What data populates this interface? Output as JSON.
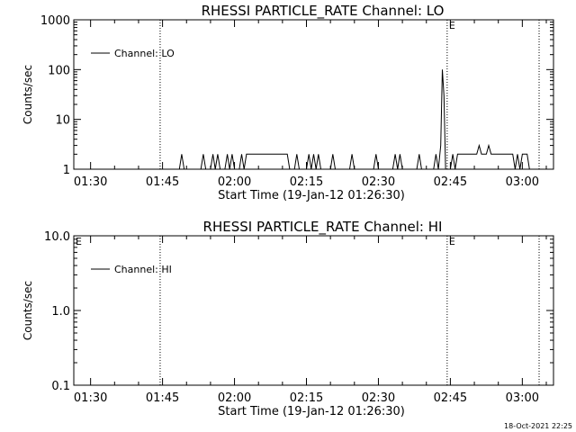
{
  "footer": {
    "timestamp": "18-Oct-2021 22:25"
  },
  "chart_data": [
    {
      "type": "line",
      "title": "RHESSI PARTICLE_RATE Channel: LO",
      "xlabel": "Start Time (19-Jan-12 01:26:30)",
      "ylabel": "Counts/sec",
      "yscale": "log",
      "ylim": [
        1,
        1000
      ],
      "xlim": [
        "01:26:30",
        "03:06:30"
      ],
      "x_ticks": [
        "01:30",
        "01:45",
        "02:00",
        "02:15",
        "02:30",
        "02:45",
        "03:00"
      ],
      "y_ticks": [
        "1",
        "10",
        "100",
        "1000"
      ],
      "legend": {
        "position": "top-left",
        "entries": [
          "Channel: LO"
        ]
      },
      "markers": [
        {
          "time": "01:44:30",
          "label": ""
        },
        {
          "time": "02:44:20",
          "label": "E"
        },
        {
          "time": "03:03:30",
          "label": ""
        }
      ],
      "series": [
        {
          "name": "Channel: LO",
          "points": [
            [
              "01:26:30",
              1
            ],
            [
              "01:48:30",
              1
            ],
            [
              "01:49:00",
              2
            ],
            [
              "01:49:30",
              1
            ],
            [
              "01:53:00",
              1
            ],
            [
              "01:53:30",
              2
            ],
            [
              "01:54:00",
              1
            ],
            [
              "01:55:00",
              1
            ],
            [
              "01:55:30",
              2
            ],
            [
              "01:56:00",
              1
            ],
            [
              "01:56:30",
              2
            ],
            [
              "01:57:00",
              1
            ],
            [
              "01:58:00",
              1
            ],
            [
              "01:58:30",
              2
            ],
            [
              "01:59:00",
              1
            ],
            [
              "01:59:30",
              2
            ],
            [
              "02:00:00",
              1
            ],
            [
              "02:01:00",
              1
            ],
            [
              "02:01:30",
              2
            ],
            [
              "02:02:00",
              1
            ],
            [
              "02:02:30",
              2
            ],
            [
              "02:11:00",
              2
            ],
            [
              "02:11:30",
              1
            ],
            [
              "02:12:30",
              1
            ],
            [
              "02:13:00",
              2
            ],
            [
              "02:13:30",
              1
            ],
            [
              "02:15:00",
              1
            ],
            [
              "02:15:30",
              2
            ],
            [
              "02:16:00",
              1
            ],
            [
              "02:16:30",
              2
            ],
            [
              "02:17:00",
              1
            ],
            [
              "02:17:30",
              2
            ],
            [
              "02:18:00",
              1
            ],
            [
              "02:20:00",
              1
            ],
            [
              "02:20:30",
              2
            ],
            [
              "02:21:00",
              1
            ],
            [
              "02:24:00",
              1
            ],
            [
              "02:24:30",
              2
            ],
            [
              "02:25:00",
              1
            ],
            [
              "02:29:00",
              1
            ],
            [
              "02:29:30",
              2
            ],
            [
              "02:30:00",
              1
            ],
            [
              "02:33:00",
              1
            ],
            [
              "02:33:30",
              2
            ],
            [
              "02:34:00",
              1
            ],
            [
              "02:34:30",
              2
            ],
            [
              "02:35:00",
              1
            ],
            [
              "02:38:00",
              1
            ],
            [
              "02:38:30",
              2
            ],
            [
              "02:39:00",
              1
            ],
            [
              "02:41:30",
              1
            ],
            [
              "02:42:00",
              2
            ],
            [
              "02:42:30",
              1
            ],
            [
              "02:43:00",
              3
            ],
            [
              "02:43:20",
              100
            ],
            [
              "02:43:40",
              30
            ],
            [
              "02:44:00",
              1
            ],
            [
              "02:45:00",
              1
            ],
            [
              "02:45:30",
              2
            ],
            [
              "02:46:00",
              1
            ],
            [
              "02:46:30",
              2
            ],
            [
              "02:50:30",
              2
            ],
            [
              "02:51:00",
              3
            ],
            [
              "02:51:30",
              2
            ],
            [
              "02:52:30",
              2
            ],
            [
              "02:53:00",
              3
            ],
            [
              "02:53:30",
              2
            ],
            [
              "02:58:00",
              2
            ],
            [
              "02:58:30",
              1
            ],
            [
              "02:59:00",
              2
            ],
            [
              "02:59:30",
              1
            ],
            [
              "03:00:00",
              2
            ],
            [
              "03:01:00",
              2
            ],
            [
              "03:01:30",
              1
            ],
            [
              "03:06:30",
              1
            ]
          ]
        }
      ]
    },
    {
      "type": "line",
      "title": "RHESSI PARTICLE_RATE Channel: HI",
      "xlabel": "Start Time (19-Jan-12 01:26:30)",
      "ylabel": "Counts/sec",
      "yscale": "log",
      "ylim": [
        0.1,
        10
      ],
      "xlim": [
        "01:26:30",
        "03:06:30"
      ],
      "x_ticks": [
        "01:30",
        "01:45",
        "02:00",
        "02:15",
        "02:30",
        "02:45",
        "03:00"
      ],
      "y_ticks": [
        "0.1",
        "1.0",
        "10.0"
      ],
      "legend": {
        "position": "top-left",
        "entries": [
          "Channel: HI"
        ]
      },
      "markers": [
        {
          "time": "01:26:30",
          "label": "E"
        },
        {
          "time": "01:44:30",
          "label": ""
        },
        {
          "time": "02:44:20",
          "label": "E"
        },
        {
          "time": "03:03:30",
          "label": ""
        }
      ],
      "series": [
        {
          "name": "Channel: HI",
          "points": []
        }
      ]
    }
  ]
}
